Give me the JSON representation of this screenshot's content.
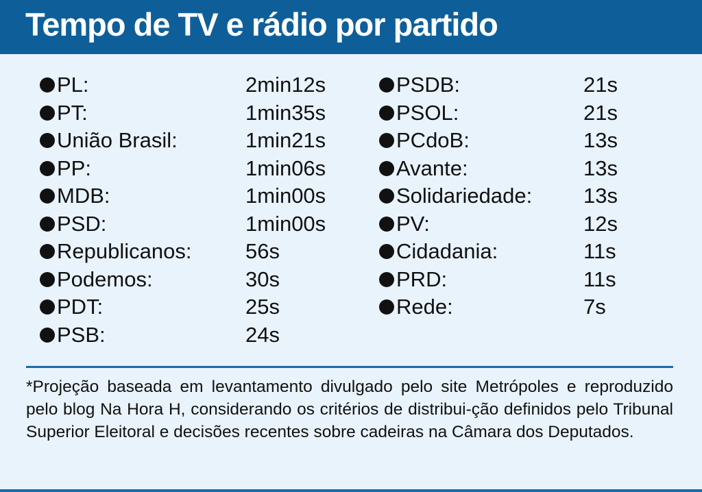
{
  "header": {
    "title": "Tempo de TV e rádio por partido",
    "background_color": "#0e5f99"
  },
  "left_column": [
    {
      "party": "PL:",
      "time": "2min12s"
    },
    {
      "party": "PT:",
      "time": "1min35s"
    },
    {
      "party": "União Brasil:",
      "time": "1min21s"
    },
    {
      "party": "PP:",
      "time": "1min06s"
    },
    {
      "party": "MDB:",
      "time": "1min00s"
    },
    {
      "party": "PSD:",
      "time": "1min00s"
    },
    {
      "party": "Republicanos:",
      "time": "56s"
    },
    {
      "party": "Podemos:",
      "time": "30s"
    },
    {
      "party": "PDT:",
      "time": "25s"
    },
    {
      "party": "PSB:",
      "time": "24s"
    }
  ],
  "right_column": [
    {
      "party": "PSDB:",
      "time": "21s"
    },
    {
      "party": "PSOL:",
      "time": "21s"
    },
    {
      "party": "PCdoB:",
      "time": "13s"
    },
    {
      "party": "Avante:",
      "time": "13s"
    },
    {
      "party": "Solidariedade:",
      "time": "13s"
    },
    {
      "party": "PV:",
      "time": "12s"
    },
    {
      "party": "Cidadania:",
      "time": "11s"
    },
    {
      "party": "PRD:",
      "time": "11s"
    },
    {
      "party": "Rede:",
      "time": "7s"
    }
  ],
  "footnote": "*Projeção baseada em levantamento divulgado pelo site Metrópoles e reproduzido pelo blog Na Hora H, considerando os critérios de distribui-ção definidos pelo Tribunal Superior Eleitoral e decisões recentes sobre cadeiras na Câmara dos Deputados.",
  "colors": {
    "panel_background": "#e8f3fc",
    "accent_rule": "#1a6aa5",
    "text": "#111111"
  }
}
